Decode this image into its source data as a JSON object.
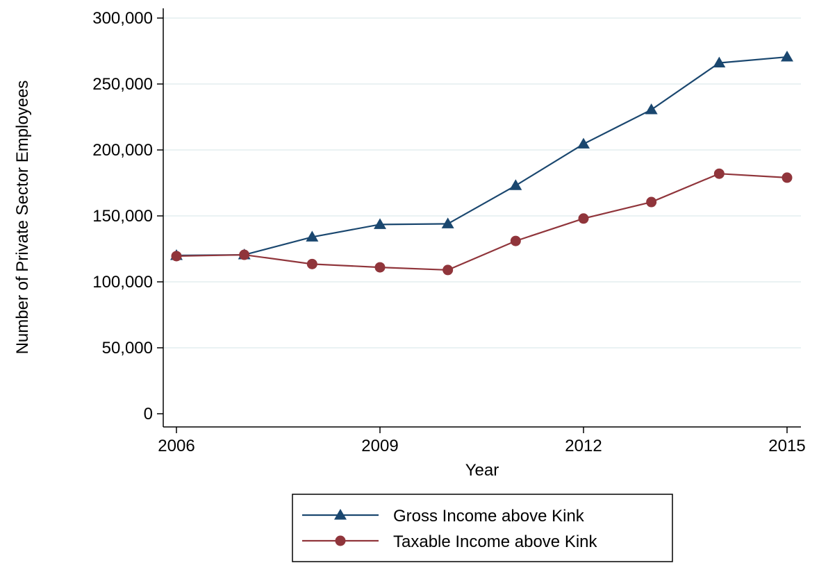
{
  "chart_data": {
    "type": "line",
    "xlabel": "Year",
    "ylabel": "Number of Private Sector Employees",
    "x": [
      2006,
      2007,
      2008,
      2009,
      2010,
      2011,
      2012,
      2013,
      2014,
      2015
    ],
    "xticks": [
      2006,
      2009,
      2012,
      2015
    ],
    "xlim": [
      2006,
      2015
    ],
    "ylim": [
      0,
      300000
    ],
    "yticks": [
      0,
      50000,
      100000,
      150000,
      200000,
      250000,
      300000
    ],
    "ytick_labels": [
      "0",
      "50,000",
      "100,000",
      "150,000",
      "200,000",
      "250,000",
      "300,000"
    ],
    "grid": true,
    "legend_position": "bottom-center",
    "series": [
      {
        "name": "Gross Income above Kink",
        "color": "#1a476f",
        "marker": "triangle",
        "values": [
          120000,
          120500,
          134000,
          143500,
          144000,
          173000,
          204500,
          230500,
          266000,
          270500
        ]
      },
      {
        "name": "Taxable Income above Kink",
        "color": "#90353b",
        "marker": "circle",
        "values": [
          119500,
          120500,
          113500,
          111000,
          109000,
          131000,
          148000,
          160500,
          182000,
          179000
        ]
      }
    ]
  }
}
